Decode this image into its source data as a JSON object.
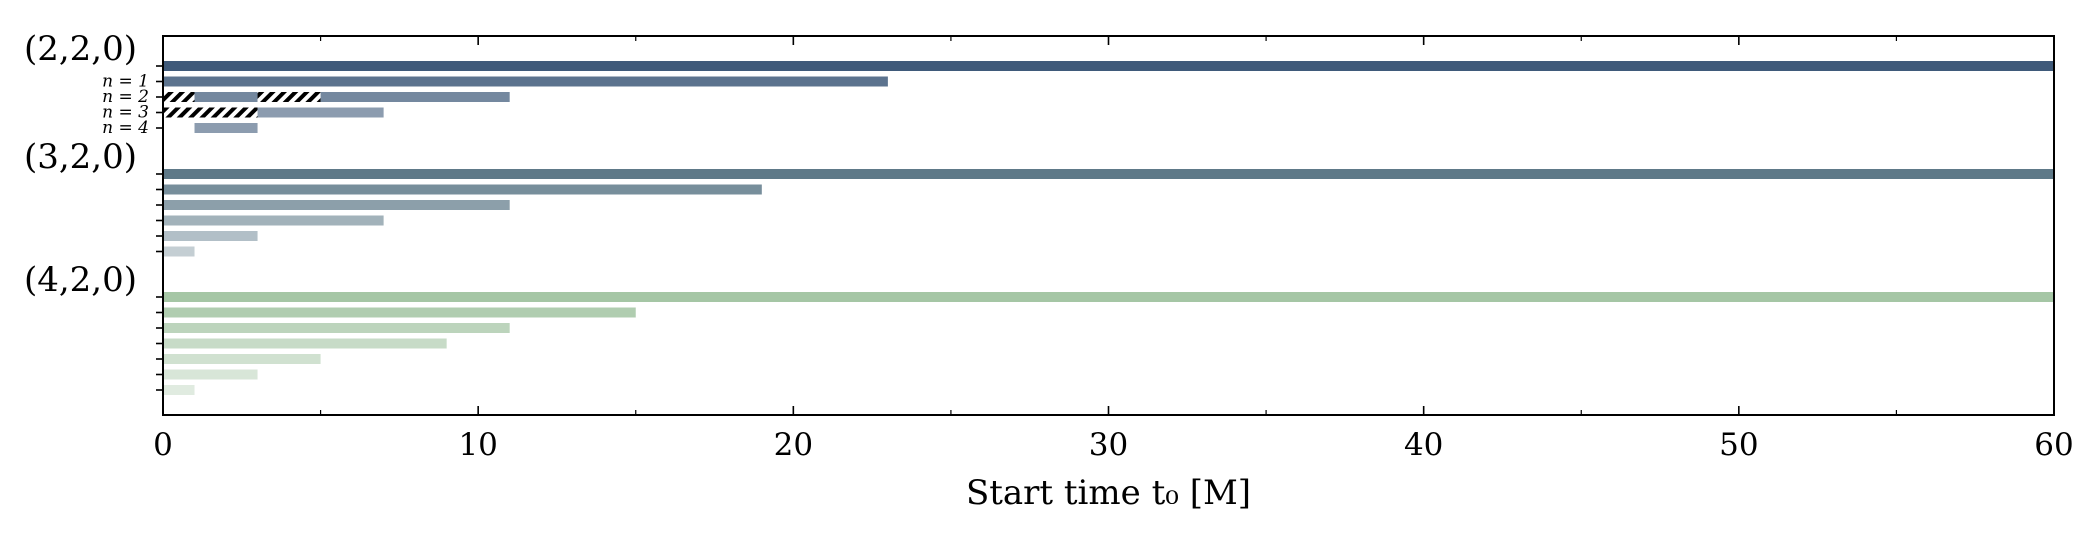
{
  "chart_data": {
    "type": "bar",
    "orientation": "horizontal",
    "xlabel": "Start time t₀ [M]",
    "xlim": [
      0,
      60
    ],
    "x_ticks": [
      "0",
      "10",
      "20",
      "30",
      "40",
      "50",
      "60"
    ],
    "grid": false,
    "groups": [
      {
        "name": "(2,2,0)",
        "color": "#3f5a7a",
        "row_labels": [
          "",
          "n = 1",
          "n = 2",
          "n = 3",
          "n = 4"
        ],
        "bars": [
          {
            "intervals": [
              [
                0,
                60
              ]
            ],
            "hatched": [],
            "opacity": 1.0
          },
          {
            "intervals": [
              [
                0,
                23
              ]
            ],
            "hatched": [],
            "opacity": 0.85
          },
          {
            "intervals": [
              [
                0,
                1
              ],
              [
                1,
                3
              ],
              [
                3,
                5
              ],
              [
                5,
                11
              ]
            ],
            "hatched": [
              [
                0,
                1
              ],
              [
                3,
                5
              ]
            ],
            "opacity": 0.72
          },
          {
            "intervals": [
              [
                0,
                3
              ],
              [
                3,
                7
              ]
            ],
            "hatched": [
              [
                0,
                3
              ]
            ],
            "opacity": 0.6
          },
          {
            "intervals": [
              [
                1,
                3
              ]
            ],
            "hatched": [],
            "opacity": 0.6
          }
        ]
      },
      {
        "name": "(3,2,0)",
        "color": "#557282",
        "row_labels": [
          "",
          "",
          "",
          "",
          "",
          ""
        ],
        "bars": [
          {
            "intervals": [
              [
                0,
                60
              ]
            ],
            "hatched": [],
            "opacity": 0.95
          },
          {
            "intervals": [
              [
                0,
                19
              ]
            ],
            "hatched": [],
            "opacity": 0.8
          },
          {
            "intervals": [
              [
                0,
                11
              ]
            ],
            "hatched": [],
            "opacity": 0.68
          },
          {
            "intervals": [
              [
                0,
                7
              ]
            ],
            "hatched": [],
            "opacity": 0.55
          },
          {
            "intervals": [
              [
                0,
                3
              ]
            ],
            "hatched": [],
            "opacity": 0.45
          },
          {
            "intervals": [
              [
                0,
                1
              ]
            ],
            "hatched": [],
            "opacity": 0.35
          }
        ]
      },
      {
        "name": "(4,2,0)",
        "color": "#8fb88f",
        "row_labels": [
          "",
          "",
          "",
          "",
          "",
          "",
          ""
        ],
        "bars": [
          {
            "intervals": [
              [
                0,
                60
              ]
            ],
            "hatched": [],
            "opacity": 0.8
          },
          {
            "intervals": [
              [
                0,
                15
              ]
            ],
            "hatched": [],
            "opacity": 0.7
          },
          {
            "intervals": [
              [
                0,
                11
              ]
            ],
            "hatched": [],
            "opacity": 0.6
          },
          {
            "intervals": [
              [
                0,
                9
              ]
            ],
            "hatched": [],
            "opacity": 0.5
          },
          {
            "intervals": [
              [
                0,
                5
              ]
            ],
            "hatched": [],
            "opacity": 0.42
          },
          {
            "intervals": [
              [
                0,
                3
              ]
            ],
            "hatched": [],
            "opacity": 0.35
          },
          {
            "intervals": [
              [
                0,
                1
              ]
            ],
            "hatched": [],
            "opacity": 0.28
          }
        ]
      }
    ]
  }
}
